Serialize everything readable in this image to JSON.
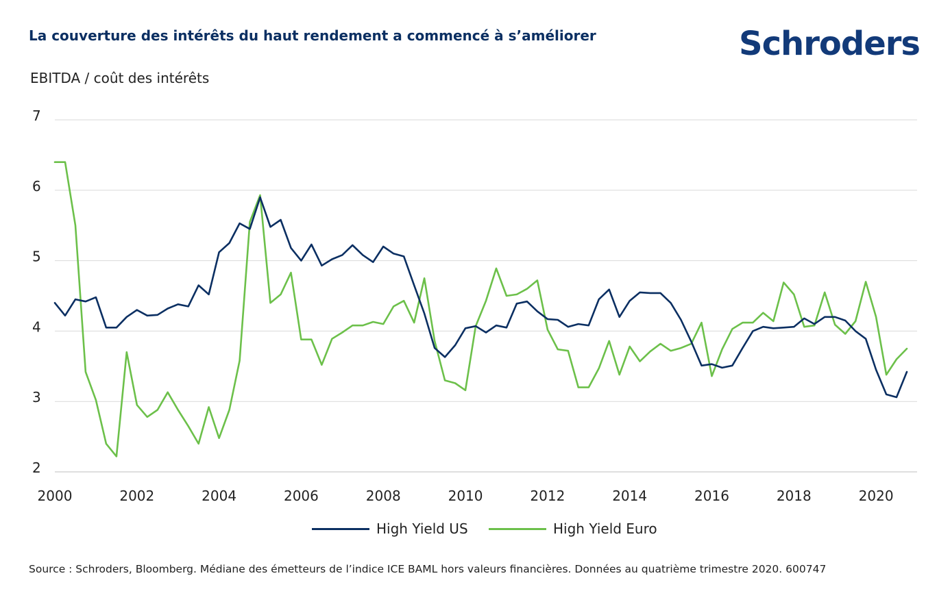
{
  "title": "La couverture des intérêts du haut rendement a commencé à s’améliorer",
  "logo": "Schroders",
  "source": "Source : Schroders, Bloomberg. Médiane des émetteurs de l’indice ICE BAML hors valeurs financières. Données au quatrième trimestre 2020. 600747",
  "chart_data": {
    "type": "line",
    "title": "La couverture des intérêts du haut rendement a commencé à s’améliorer",
    "ylabel": "EBITDA / coût des intérêts",
    "xlabel": "",
    "xlim": [
      2000,
      2021
    ],
    "ylim": [
      2,
      7
    ],
    "yticks": [
      "2",
      "3",
      "4",
      "5",
      "6",
      "7"
    ],
    "xticks": [
      "2000",
      "2002",
      "2004",
      "2006",
      "2008",
      "2010",
      "2012",
      "2014",
      "2016",
      "2018",
      "2020"
    ],
    "grid": "horizontal",
    "legend": "bottom-center",
    "x": [
      2000.0,
      2000.25,
      2000.5,
      2000.75,
      2001.0,
      2001.25,
      2001.5,
      2001.75,
      2002.0,
      2002.25,
      2002.5,
      2002.75,
      2003.0,
      2003.25,
      2003.5,
      2003.75,
      2004.0,
      2004.25,
      2004.5,
      2004.75,
      2005.0,
      2005.25,
      2005.5,
      2005.75,
      2006.0,
      2006.25,
      2006.5,
      2006.75,
      2007.0,
      2007.25,
      2007.5,
      2007.75,
      2008.0,
      2008.25,
      2008.5,
      2008.75,
      2009.0,
      2009.25,
      2009.5,
      2009.75,
      2010.0,
      2010.25,
      2010.5,
      2010.75,
      2011.0,
      2011.25,
      2011.5,
      2011.75,
      2012.0,
      2012.25,
      2012.5,
      2012.75,
      2013.0,
      2013.25,
      2013.5,
      2013.75,
      2014.0,
      2014.25,
      2014.5,
      2014.75,
      2015.0,
      2015.25,
      2015.5,
      2015.75,
      2016.0,
      2016.25,
      2016.5,
      2016.75,
      2017.0,
      2017.25,
      2017.5,
      2017.75,
      2018.0,
      2018.25,
      2018.5,
      2018.75,
      2019.0,
      2019.25,
      2019.5,
      2019.75,
      2020.0,
      2020.25,
      2020.5,
      2020.75,
      2021.0
    ],
    "series": [
      {
        "name": "High Yield US",
        "color": "#0b2f62",
        "values": [
          4.4,
          4.22,
          4.45,
          4.42,
          4.48,
          4.05,
          4.05,
          4.2,
          4.3,
          4.22,
          4.23,
          4.32,
          4.38,
          4.35,
          4.65,
          4.52,
          5.12,
          5.25,
          5.53,
          5.45,
          5.9,
          5.48,
          5.58,
          5.18,
          5.0,
          5.23,
          4.93,
          5.02,
          5.08,
          5.22,
          5.08,
          4.98,
          5.2,
          5.1,
          5.06,
          4.65,
          4.25,
          3.76,
          3.63,
          3.8,
          4.04,
          4.07,
          3.98,
          4.08,
          4.05,
          4.39,
          4.42,
          4.28,
          4.17,
          4.16,
          4.06,
          4.1,
          4.08,
          4.45,
          4.59,
          4.2,
          4.43,
          4.55,
          4.54,
          4.54,
          4.4,
          4.16,
          3.85,
          3.51,
          3.53,
          3.48,
          3.51,
          3.76,
          4.0,
          4.06,
          4.04,
          4.05,
          4.06,
          4.18,
          4.1,
          4.2,
          4.2,
          4.15,
          4.0,
          3.89,
          3.45,
          3.1,
          3.06,
          3.42,
          null
        ]
      },
      {
        "name": "High Yield Euro",
        "color": "#6cc04a",
        "values": [
          6.4,
          6.4,
          5.5,
          3.42,
          3.02,
          2.4,
          2.22,
          3.7,
          2.95,
          2.78,
          2.88,
          3.13,
          2.88,
          2.65,
          2.4,
          2.92,
          2.48,
          2.88,
          3.58,
          5.55,
          5.93,
          4.4,
          4.52,
          4.83,
          3.88,
          3.88,
          3.52,
          3.89,
          3.98,
          4.08,
          4.08,
          4.13,
          4.1,
          4.35,
          4.43,
          4.12,
          4.75,
          3.86,
          3.3,
          3.26,
          3.16,
          4.07,
          4.43,
          4.89,
          4.5,
          4.52,
          4.6,
          4.72,
          4.02,
          3.74,
          3.72,
          3.2,
          3.2,
          3.47,
          3.86,
          3.38,
          3.78,
          3.57,
          3.71,
          3.82,
          3.72,
          3.76,
          3.82,
          4.12,
          3.36,
          3.74,
          4.03,
          4.12,
          4.12,
          4.26,
          4.14,
          4.69,
          4.52,
          4.06,
          4.08,
          4.55,
          4.09,
          3.96,
          4.14,
          4.7,
          4.2,
          3.38,
          3.6,
          3.75,
          null
        ]
      }
    ]
  }
}
